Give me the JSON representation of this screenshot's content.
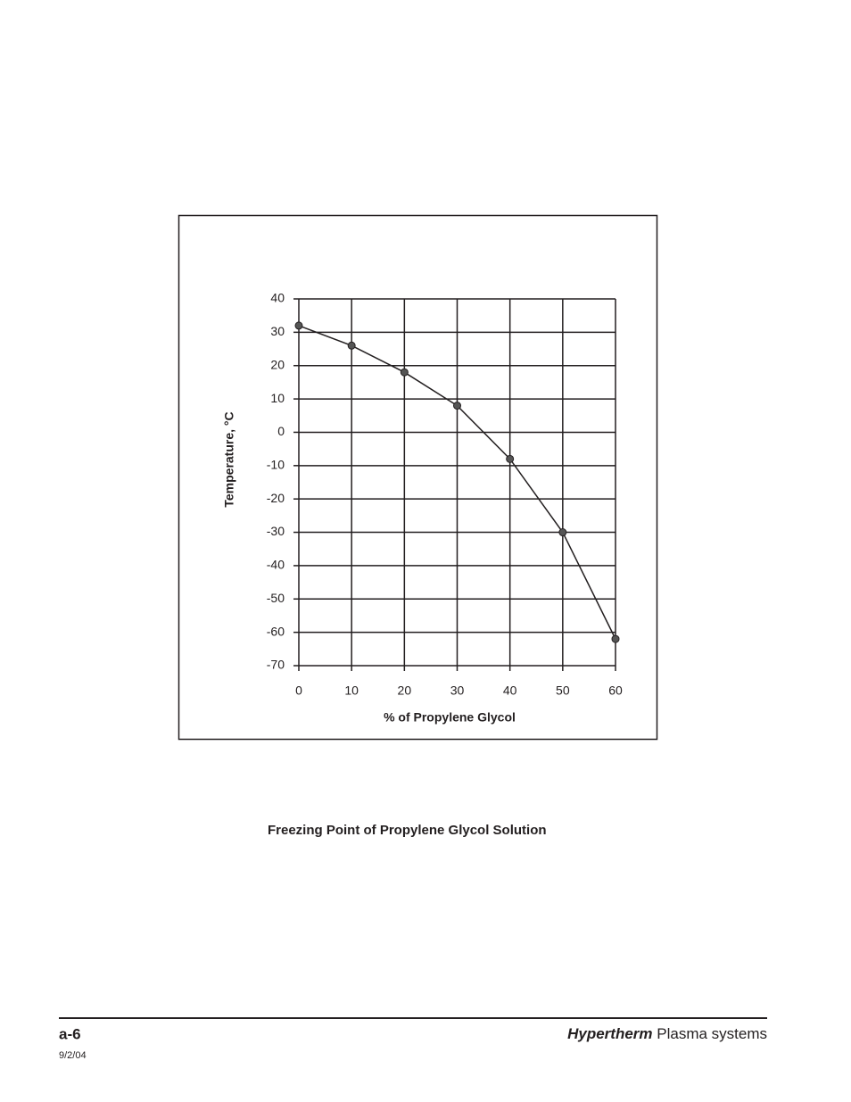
{
  "chart_data": {
    "type": "line",
    "x_label": "% of Propylene Glycol",
    "y_label": "Temperature, °C",
    "x": [
      0,
      10,
      20,
      30,
      40,
      50,
      60
    ],
    "values": [
      32,
      26,
      18,
      8,
      -8,
      -30,
      -62
    ],
    "color": "#231f20",
    "xlim": [
      0,
      60
    ],
    "ylim": [
      -70,
      40
    ],
    "xticks": [
      0,
      10,
      20,
      30,
      40,
      50,
      60
    ],
    "yticks": [
      -70,
      -60,
      -50,
      -40,
      -30,
      -20,
      -10,
      0,
      10,
      20,
      30,
      40
    ],
    "grid": true
  },
  "caption": "Freezing Point of Propylene Glycol Solution",
  "footer": {
    "page": "a-6",
    "date": "9/2/04",
    "brand": "Hypertherm",
    "product": "Plasma systems"
  }
}
